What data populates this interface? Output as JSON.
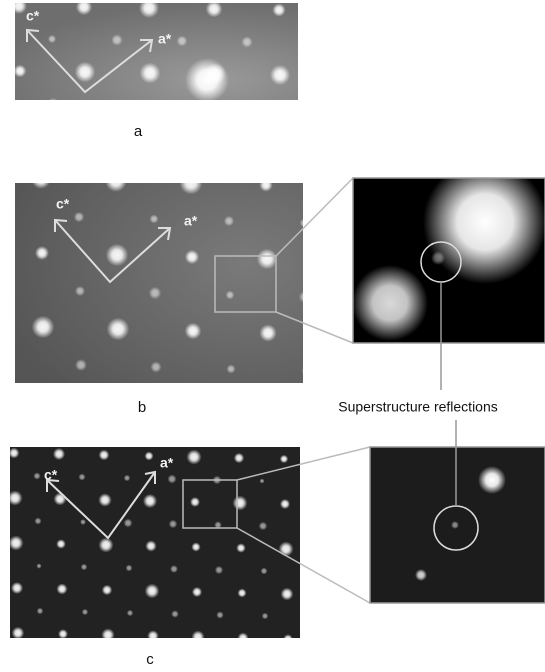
{
  "panels": [
    {
      "label": "a",
      "axes": [
        "c*",
        "a*"
      ]
    },
    {
      "label": "b",
      "axes": [
        "c*",
        "a*"
      ]
    },
    {
      "label": "c",
      "axes": [
        "c*",
        "a*"
      ]
    }
  ],
  "annotation": "Superstructure reflections"
}
